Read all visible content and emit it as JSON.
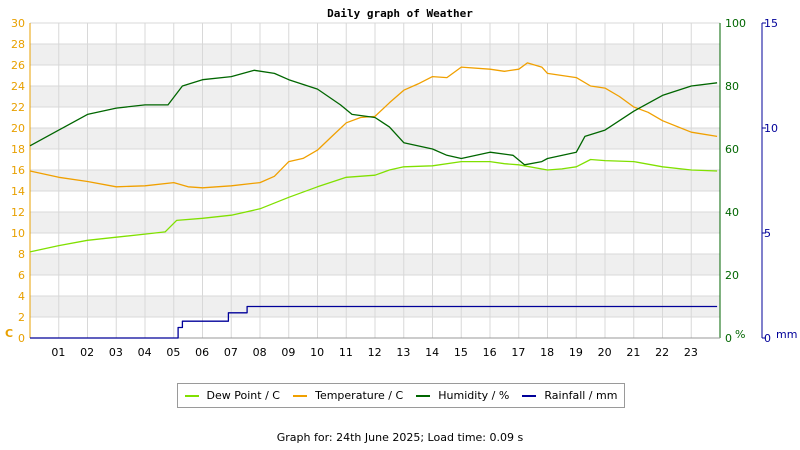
{
  "chart_data": {
    "type": "line",
    "title": "Daily graph of Weather",
    "x_unit": "hour of day",
    "x_ticks": [
      "01",
      "02",
      "03",
      "04",
      "05",
      "06",
      "07",
      "08",
      "09",
      "10",
      "11",
      "12",
      "13",
      "14",
      "15",
      "16",
      "17",
      "18",
      "19",
      "20",
      "21",
      "22",
      "23"
    ],
    "xlim": [
      0,
      24
    ],
    "axes": {
      "left": {
        "unit_label": "C",
        "ylim": [
          0,
          30
        ],
        "ticks": [
          "0",
          "2",
          "4",
          "6",
          "8",
          "10",
          "12",
          "14",
          "16",
          "18",
          "20",
          "22",
          "24",
          "26",
          "28",
          "30"
        ],
        "color": "#e8a000"
      },
      "right1": {
        "unit_label": "%",
        "ylim": [
          0,
          100
        ],
        "ticks": [
          "0",
          "20",
          "40",
          "60",
          "80",
          "100"
        ],
        "color": "#006600"
      },
      "right2": {
        "unit_label": "mm",
        "ylim": [
          0,
          15
        ],
        "ticks": [
          "0",
          "5",
          "10",
          "15"
        ],
        "color": "#000099"
      }
    },
    "grid": true,
    "legend_position": "bottom",
    "series": [
      {
        "name": "Dew Point / C",
        "axis": "left",
        "color": "#80e000",
        "points": [
          [
            0,
            8.2
          ],
          [
            1,
            8.8
          ],
          [
            2,
            9.3
          ],
          [
            3,
            9.6
          ],
          [
            4,
            9.9
          ],
          [
            4.7,
            10.1
          ],
          [
            5.1,
            11.2
          ],
          [
            6,
            11.4
          ],
          [
            7,
            11.7
          ],
          [
            8,
            12.3
          ],
          [
            9,
            13.4
          ],
          [
            10,
            14.4
          ],
          [
            11,
            15.3
          ],
          [
            12,
            15.5
          ],
          [
            12.5,
            16.0
          ],
          [
            13,
            16.3
          ],
          [
            14,
            16.4
          ],
          [
            15,
            16.8
          ],
          [
            16,
            16.8
          ],
          [
            16.5,
            16.6
          ],
          [
            17,
            16.5
          ],
          [
            18,
            16.0
          ],
          [
            18.5,
            16.1
          ],
          [
            19,
            16.3
          ],
          [
            19.5,
            17.0
          ],
          [
            20,
            16.9
          ],
          [
            21,
            16.8
          ],
          [
            22,
            16.3
          ],
          [
            23,
            16.0
          ],
          [
            23.9,
            15.9
          ]
        ]
      },
      {
        "name": "Temperature / C",
        "axis": "left",
        "color": "#f0a000",
        "points": [
          [
            0,
            15.9
          ],
          [
            1,
            15.3
          ],
          [
            2,
            14.9
          ],
          [
            3,
            14.4
          ],
          [
            4,
            14.5
          ],
          [
            5,
            14.8
          ],
          [
            5.5,
            14.4
          ],
          [
            6,
            14.3
          ],
          [
            7,
            14.5
          ],
          [
            8,
            14.8
          ],
          [
            8.5,
            15.4
          ],
          [
            9,
            16.8
          ],
          [
            9.5,
            17.1
          ],
          [
            10,
            17.9
          ],
          [
            10.5,
            19.2
          ],
          [
            11,
            20.5
          ],
          [
            11.5,
            21.0
          ],
          [
            12,
            21.1
          ],
          [
            12.5,
            22.4
          ],
          [
            13,
            23.6
          ],
          [
            13.5,
            24.2
          ],
          [
            14,
            24.9
          ],
          [
            14.5,
            24.8
          ],
          [
            15,
            25.8
          ],
          [
            16,
            25.6
          ],
          [
            16.5,
            25.4
          ],
          [
            17,
            25.6
          ],
          [
            17.3,
            26.2
          ],
          [
            17.8,
            25.8
          ],
          [
            18,
            25.2
          ],
          [
            19,
            24.8
          ],
          [
            19.5,
            24.0
          ],
          [
            20,
            23.8
          ],
          [
            20.5,
            23.0
          ],
          [
            21,
            22.0
          ],
          [
            21.5,
            21.5
          ],
          [
            22,
            20.7
          ],
          [
            23,
            19.6
          ],
          [
            23.9,
            19.2
          ]
        ]
      },
      {
        "name": "Humidity / %",
        "axis": "right1",
        "color": "#006600",
        "points": [
          [
            0,
            61
          ],
          [
            1,
            66
          ],
          [
            2,
            71
          ],
          [
            3,
            73
          ],
          [
            4,
            74
          ],
          [
            4.8,
            74
          ],
          [
            5.3,
            80
          ],
          [
            6,
            82
          ],
          [
            7,
            83
          ],
          [
            7.8,
            85
          ],
          [
            8.5,
            84
          ],
          [
            9,
            82
          ],
          [
            10,
            79
          ],
          [
            10.8,
            74
          ],
          [
            11.2,
            71
          ],
          [
            12,
            70
          ],
          [
            12.5,
            67
          ],
          [
            13,
            62
          ],
          [
            14,
            60
          ],
          [
            14.5,
            58
          ],
          [
            15,
            57
          ],
          [
            16,
            59
          ],
          [
            16.8,
            58
          ],
          [
            17.2,
            55
          ],
          [
            17.8,
            56
          ],
          [
            18,
            57
          ],
          [
            19,
            59
          ],
          [
            19.3,
            64
          ],
          [
            20,
            66
          ],
          [
            21,
            72
          ],
          [
            22,
            77
          ],
          [
            23,
            80
          ],
          [
            23.9,
            81
          ]
        ]
      },
      {
        "name": "Rainfall / mm",
        "axis": "right2",
        "color": "#000099",
        "points": [
          [
            0,
            0
          ],
          [
            5.0,
            0
          ],
          [
            5.15,
            0.5
          ],
          [
            5.3,
            0.8
          ],
          [
            6,
            0.8
          ],
          [
            6.8,
            0.8
          ],
          [
            6.9,
            1.2
          ],
          [
            7,
            1.2
          ],
          [
            7.5,
            1.2
          ],
          [
            7.55,
            1.5
          ],
          [
            8,
            1.5
          ],
          [
            12,
            1.5
          ],
          [
            18,
            1.5
          ],
          [
            23.9,
            1.5
          ]
        ]
      }
    ]
  },
  "legend": [
    {
      "label": "Dew Point / C",
      "color": "#80e000"
    },
    {
      "label": "Temperature / C",
      "color": "#f0a000"
    },
    {
      "label": "Humidity / %",
      "color": "#006600"
    },
    {
      "label": "Rainfall / mm",
      "color": "#000099"
    }
  ],
  "footer": {
    "prefix": "Graph for: ",
    "date": "24th June 2025",
    "load_text": "; Load time: 0.09 s"
  }
}
